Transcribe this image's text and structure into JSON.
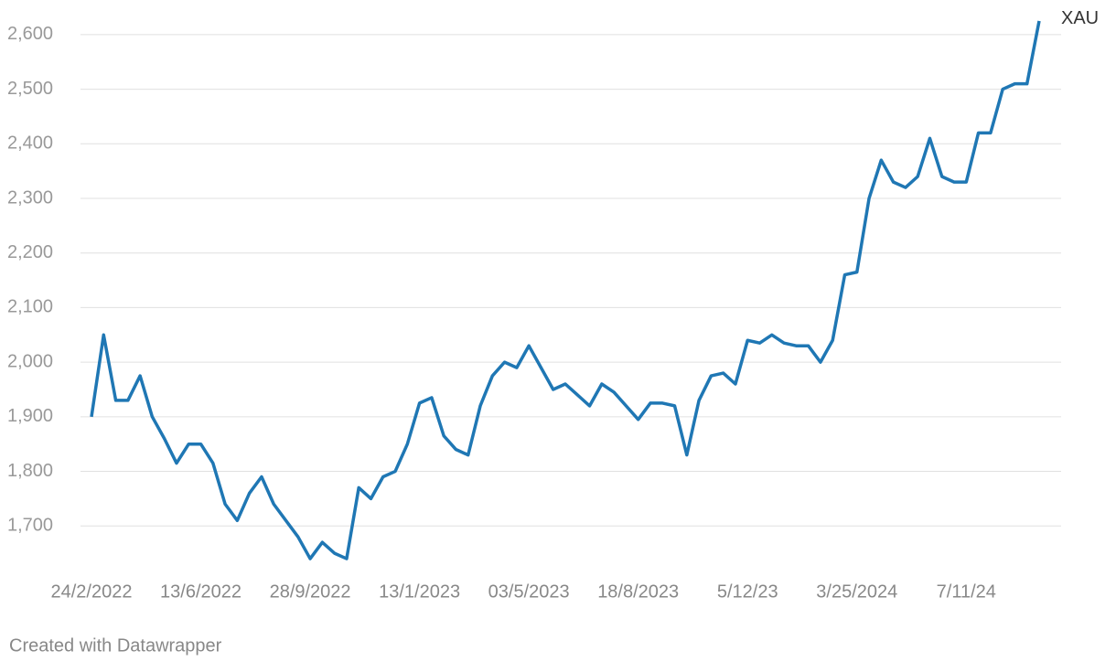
{
  "chart_data": {
    "type": "line",
    "categories": [
      "24/2/2022",
      null,
      null,
      null,
      null,
      null,
      null,
      null,
      null,
      "13/6/2022",
      null,
      null,
      null,
      null,
      null,
      null,
      null,
      null,
      "28/9/2022",
      null,
      null,
      null,
      null,
      null,
      null,
      null,
      null,
      "13/1/2023",
      null,
      null,
      null,
      null,
      null,
      null,
      null,
      null,
      "03/5/2023",
      null,
      null,
      null,
      null,
      null,
      null,
      null,
      null,
      "18/8/2023",
      null,
      null,
      null,
      null,
      null,
      null,
      null,
      null,
      "5/12/23",
      null,
      null,
      null,
      null,
      null,
      null,
      null,
      null,
      "3/25/2024",
      null,
      null,
      null,
      null,
      null,
      null,
      null,
      null,
      "7/11/24",
      null,
      null,
      null,
      null,
      null,
      null
    ],
    "series": [
      {
        "name": "XAU",
        "color": "#1f77b4",
        "values": [
          1900,
          2050,
          1930,
          1930,
          1975,
          1900,
          1860,
          1815,
          1850,
          1850,
          1815,
          1740,
          1710,
          1760,
          1790,
          1740,
          1710,
          1680,
          1640,
          1670,
          1650,
          1640,
          1770,
          1750,
          1790,
          1800,
          1850,
          1925,
          1935,
          1865,
          1840,
          1830,
          1920,
          1975,
          2000,
          1990,
          2030,
          1990,
          1950,
          1960,
          1940,
          1920,
          1960,
          1945,
          1920,
          1895,
          1925,
          1925,
          1920,
          1830,
          1930,
          1975,
          1980,
          1960,
          2040,
          2035,
          2050,
          2035,
          2030,
          2030,
          2000,
          2040,
          2160,
          2165,
          2300,
          2370,
          2330,
          2320,
          2340,
          2410,
          2340,
          2330,
          2330,
          2420,
          2420,
          2500,
          2510,
          2510,
          2625
        ]
      }
    ],
    "ylim": [
      1615,
      2640
    ],
    "yticks": [
      {
        "value": 1700,
        "label": "1,700"
      },
      {
        "value": 1800,
        "label": "1,800"
      },
      {
        "value": 1900,
        "label": "1,900"
      },
      {
        "value": 2000,
        "label": "2,000"
      },
      {
        "value": 2100,
        "label": "2,100"
      },
      {
        "value": 2200,
        "label": "2,200"
      },
      {
        "value": 2300,
        "label": "2,300"
      },
      {
        "value": 2400,
        "label": "2,400"
      },
      {
        "value": 2500,
        "label": "2,500"
      },
      {
        "value": 2600,
        "label": "2,600"
      }
    ],
    "grid": true,
    "footer": "Created with Datawrapper"
  }
}
